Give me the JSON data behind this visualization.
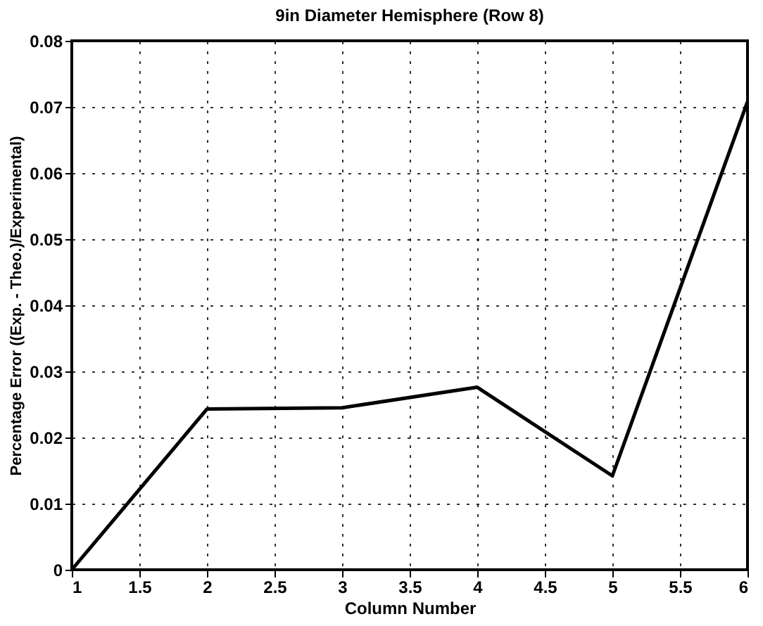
{
  "chart_data": {
    "type": "line",
    "title": "9in Diameter Hemisphere (Row 8)",
    "xlabel": "Column Number",
    "ylabel": "Percentage Error ((Exp. - Theo.)/Experimental)",
    "x": [
      1,
      2,
      3,
      4,
      5,
      6
    ],
    "series": [
      {
        "color": "#000000",
        "values": [
          0,
          0.0243,
          0.0245,
          0.0276,
          0.0142,
          0.0708
        ]
      }
    ],
    "xlim": [
      1,
      6
    ],
    "xticks": [
      1,
      1.5,
      2,
      2.5,
      3,
      3.5,
      4,
      4.5,
      5,
      5.5,
      6
    ],
    "ylim": [
      0,
      0.08
    ],
    "yticks": [
      0,
      0.01,
      0.02,
      0.03,
      0.04,
      0.05,
      0.06,
      0.07,
      0.08
    ],
    "grid": true,
    "marker": "none",
    "line_style": "solid"
  }
}
